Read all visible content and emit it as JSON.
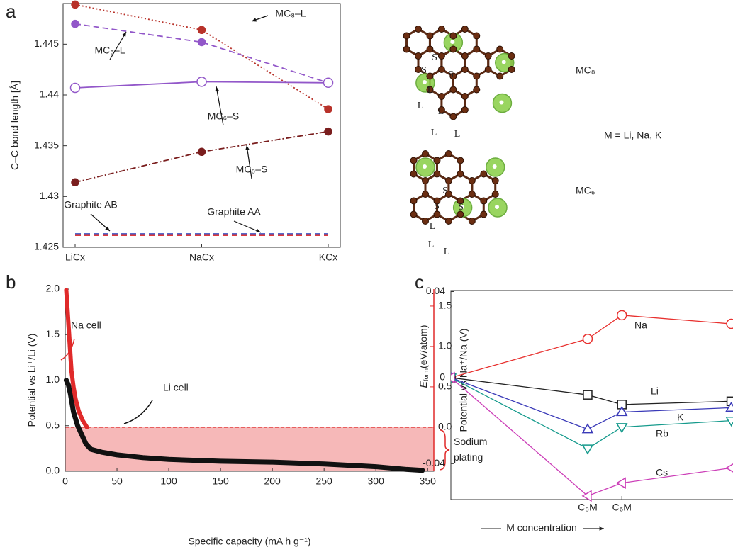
{
  "chart_data": [
    {
      "type": "line",
      "panel": "a",
      "y_label": "C–C bond length [Å]",
      "categories": [
        "LiCx",
        "NaCx",
        "KCx"
      ],
      "ylim": [
        1.425,
        1.449
      ],
      "yticks": [
        1.425,
        1.43,
        1.435,
        1.44,
        1.445
      ],
      "series": [
        {
          "name": "MC₈–L",
          "color": "#b8322a",
          "dash": "dotted",
          "values": [
            1.4489,
            1.4464,
            1.4386
          ]
        },
        {
          "name": "MC₆–L",
          "color": "#9257c9",
          "dash": "dashed",
          "values": [
            1.447,
            1.4452,
            1.4412
          ]
        },
        {
          "name": "MC₆–S",
          "color": "#9257c9",
          "dash": "solid",
          "values": [
            1.4407,
            1.4413,
            1.4412
          ]
        },
        {
          "name": "MC₈–S",
          "color": "#7a1e1e",
          "dash": "dashdot",
          "values": [
            1.4314,
            1.4344,
            1.4364
          ]
        },
        {
          "name": "Graphite AB",
          "color": "#3f56c4",
          "dash": "dashed",
          "values": [
            1.4263,
            1.4263,
            1.4263
          ]
        },
        {
          "name": "Graphite AA",
          "color": "#e03a3a",
          "dash": "dashed",
          "values": [
            1.4262,
            1.4262,
            1.4262
          ]
        }
      ]
    },
    {
      "type": "line",
      "panel": "b",
      "x_label": "Specific capacity (mA h g⁻¹)",
      "y_label": "Potential vs Li⁺/Li (V)",
      "y2_label": "Potential vs Na⁺/Na (V)",
      "xlim": [
        0,
        356
      ],
      "xticks": [
        0,
        50,
        100,
        150,
        200,
        250,
        300,
        350
      ],
      "ylim": [
        0,
        2
      ],
      "yticks": [
        {
          "value": 0,
          "label": "0.0"
        },
        {
          "value": 0.5,
          "label": "0.5"
        },
        {
          "value": 1,
          "label": "1.0"
        },
        {
          "value": 1.5,
          "label": "1.5"
        },
        {
          "value": 2,
          "label": "2.0"
        }
      ],
      "y2lim": [
        -0.545,
        1.71
      ],
      "y2ticks": [
        {
          "value": 0,
          "label": "0.0"
        },
        {
          "value": 0.5,
          "label": "0.5"
        },
        {
          "value": 1,
          "label": "1.0"
        },
        {
          "value": 1.5,
          "label": "1.5"
        }
      ],
      "y2_color": "#e02a2a",
      "series": [
        {
          "name": "Li cell",
          "color": "#111111",
          "x": [
            1,
            3,
            5,
            8,
            12,
            16,
            20,
            25,
            35,
            50,
            75,
            100,
            150,
            200,
            250,
            300,
            330,
            345
          ],
          "values": [
            1.0,
            0.95,
            0.85,
            0.65,
            0.5,
            0.4,
            0.3,
            0.24,
            0.21,
            0.18,
            0.15,
            0.13,
            0.11,
            0.1,
            0.08,
            0.05,
            0.02,
            0.01
          ]
        },
        {
          "name": "Na cell",
          "color": "#e02a2a",
          "axis": "y2",
          "x": [
            1,
            2,
            3,
            4,
            5,
            6,
            8,
            10,
            13,
            17,
            21
          ],
          "values": [
            1.7,
            1.5,
            1.3,
            1.1,
            0.9,
            0.7,
            0.5,
            0.35,
            0.2,
            0.08,
            0.0
          ]
        }
      ],
      "annotations": [
        "Sodium plating"
      ]
    },
    {
      "type": "line",
      "panel": "c",
      "x_label": "M concentration",
      "y_label": {
        "symbol": "E",
        "sub": "form",
        "unit": "(eV/atom)"
      },
      "x": [
        0,
        4,
        5,
        8.2
      ],
      "xlim": [
        0,
        8.25
      ],
      "xticks": [
        {
          "value": 4,
          "label": "C₈M"
        },
        {
          "value": 5,
          "label": "C₆M"
        }
      ],
      "ylim": [
        -0.0567,
        0.0405
      ],
      "yticks": [
        0.04,
        0,
        -0.04
      ],
      "series": [
        {
          "name": "Na",
          "color": "#e8312f",
          "marker": "circle",
          "values": [
            0,
            0.018,
            0.029,
            0.025
          ]
        },
        {
          "name": "Li",
          "color": "#222222",
          "marker": "square",
          "values": [
            0,
            -0.008,
            -0.0125,
            -0.011
          ]
        },
        {
          "name": "K",
          "color": "#3a3ab8",
          "marker": "triangle-up",
          "values": [
            0,
            -0.024,
            -0.016,
            -0.014
          ]
        },
        {
          "name": "Rb",
          "color": "#159a8c",
          "marker": "triangle-down",
          "values": [
            0,
            -0.033,
            -0.023,
            -0.02
          ]
        },
        {
          "name": "Cs",
          "color": "#cc3fb8",
          "marker": "triangle-left",
          "values": [
            0,
            -0.055,
            -0.049,
            -0.042
          ]
        }
      ]
    }
  ],
  "structure": {
    "labels": [
      "MC₈",
      "MC₆"
    ],
    "note": "M = Li, Na, K",
    "bonds_top": [
      "S",
      "S",
      "S",
      "L",
      "L",
      "L",
      "L",
      "L"
    ],
    "bonds_bottom": [
      "S",
      "S",
      "S",
      "L",
      "L",
      "L"
    ]
  }
}
